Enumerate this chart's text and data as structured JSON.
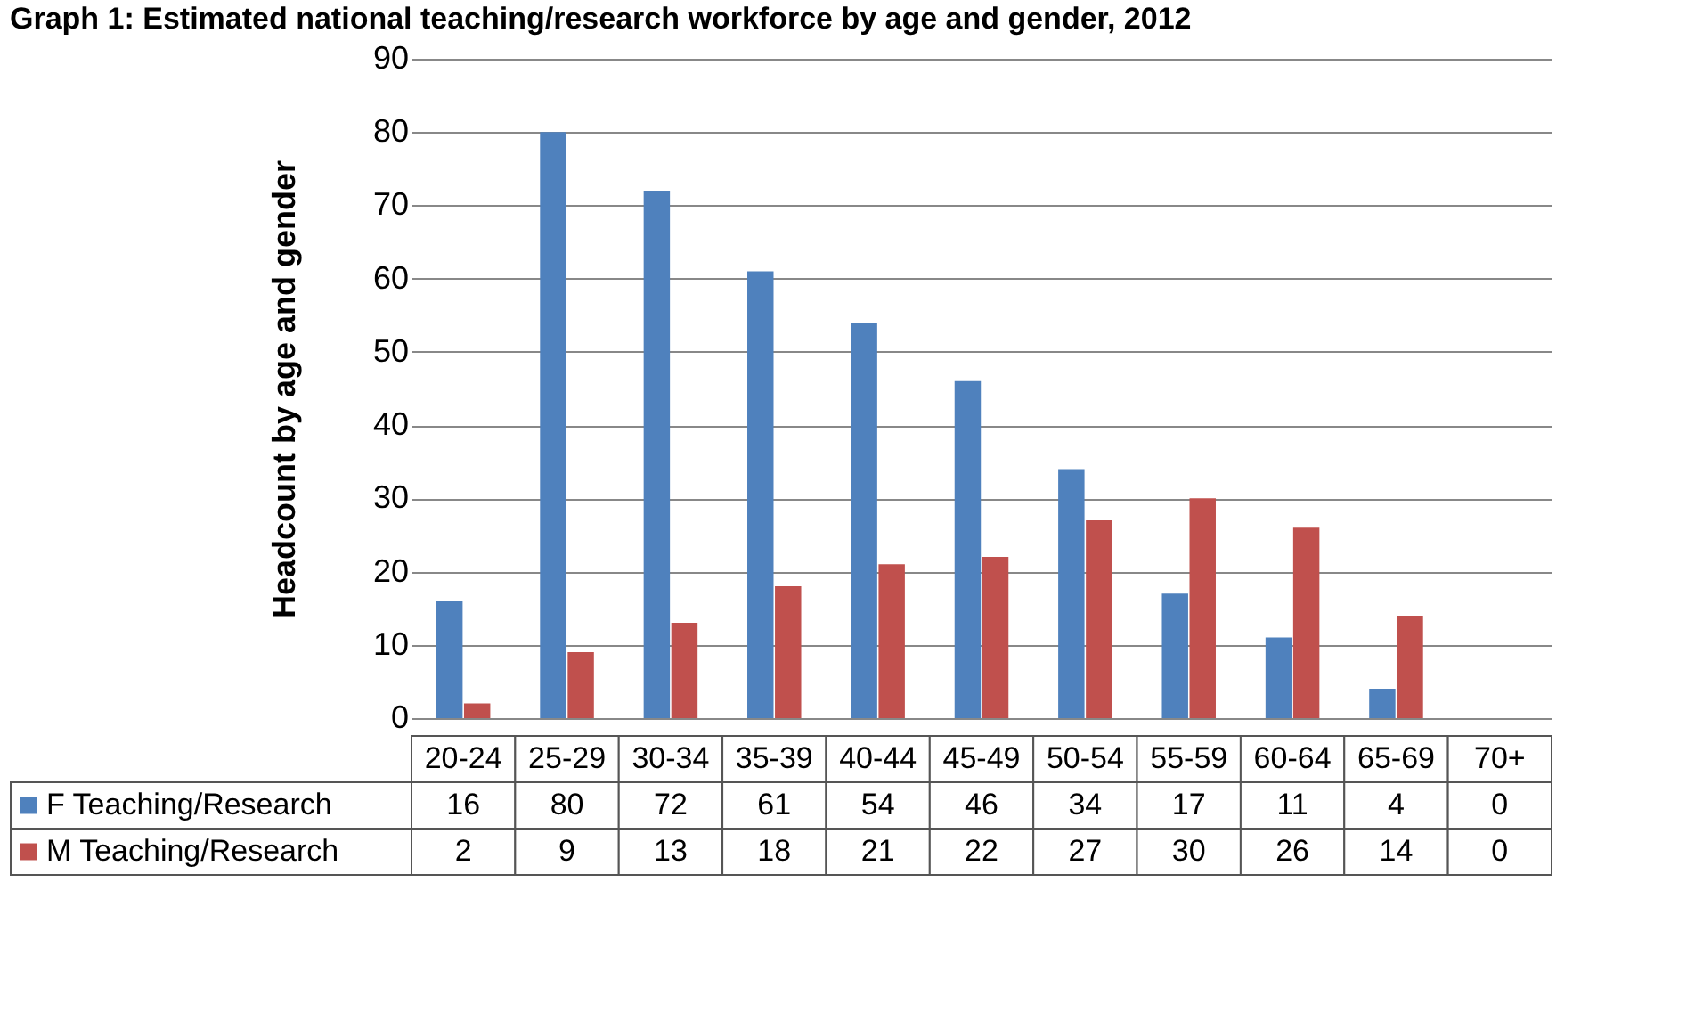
{
  "chart_data": {
    "type": "bar",
    "title": "Graph 1: Estimated national teaching/research workforce by age and gender, 2012",
    "ylabel": "Headcount by age and gender",
    "categories": [
      "20-24",
      "25-29",
      "30-34",
      "35-39",
      "40-44",
      "45-49",
      "50-54",
      "55-59",
      "60-64",
      "65-69",
      "70+"
    ],
    "series": [
      {
        "name": "F Teaching/Research",
        "color": "#4f81bd",
        "values": [
          16,
          80,
          72,
          61,
          54,
          46,
          34,
          17,
          11,
          4,
          0
        ]
      },
      {
        "name": "M Teaching/Research",
        "color": "#c0504d",
        "values": [
          2,
          9,
          13,
          18,
          21,
          22,
          27,
          30,
          26,
          14,
          0
        ]
      }
    ],
    "ylim": [
      0,
      90
    ],
    "yticks": [
      0,
      10,
      20,
      30,
      40,
      50,
      60,
      70,
      80,
      90
    ],
    "grid": "y",
    "legend": "bottom",
    "data_labels": true
  }
}
